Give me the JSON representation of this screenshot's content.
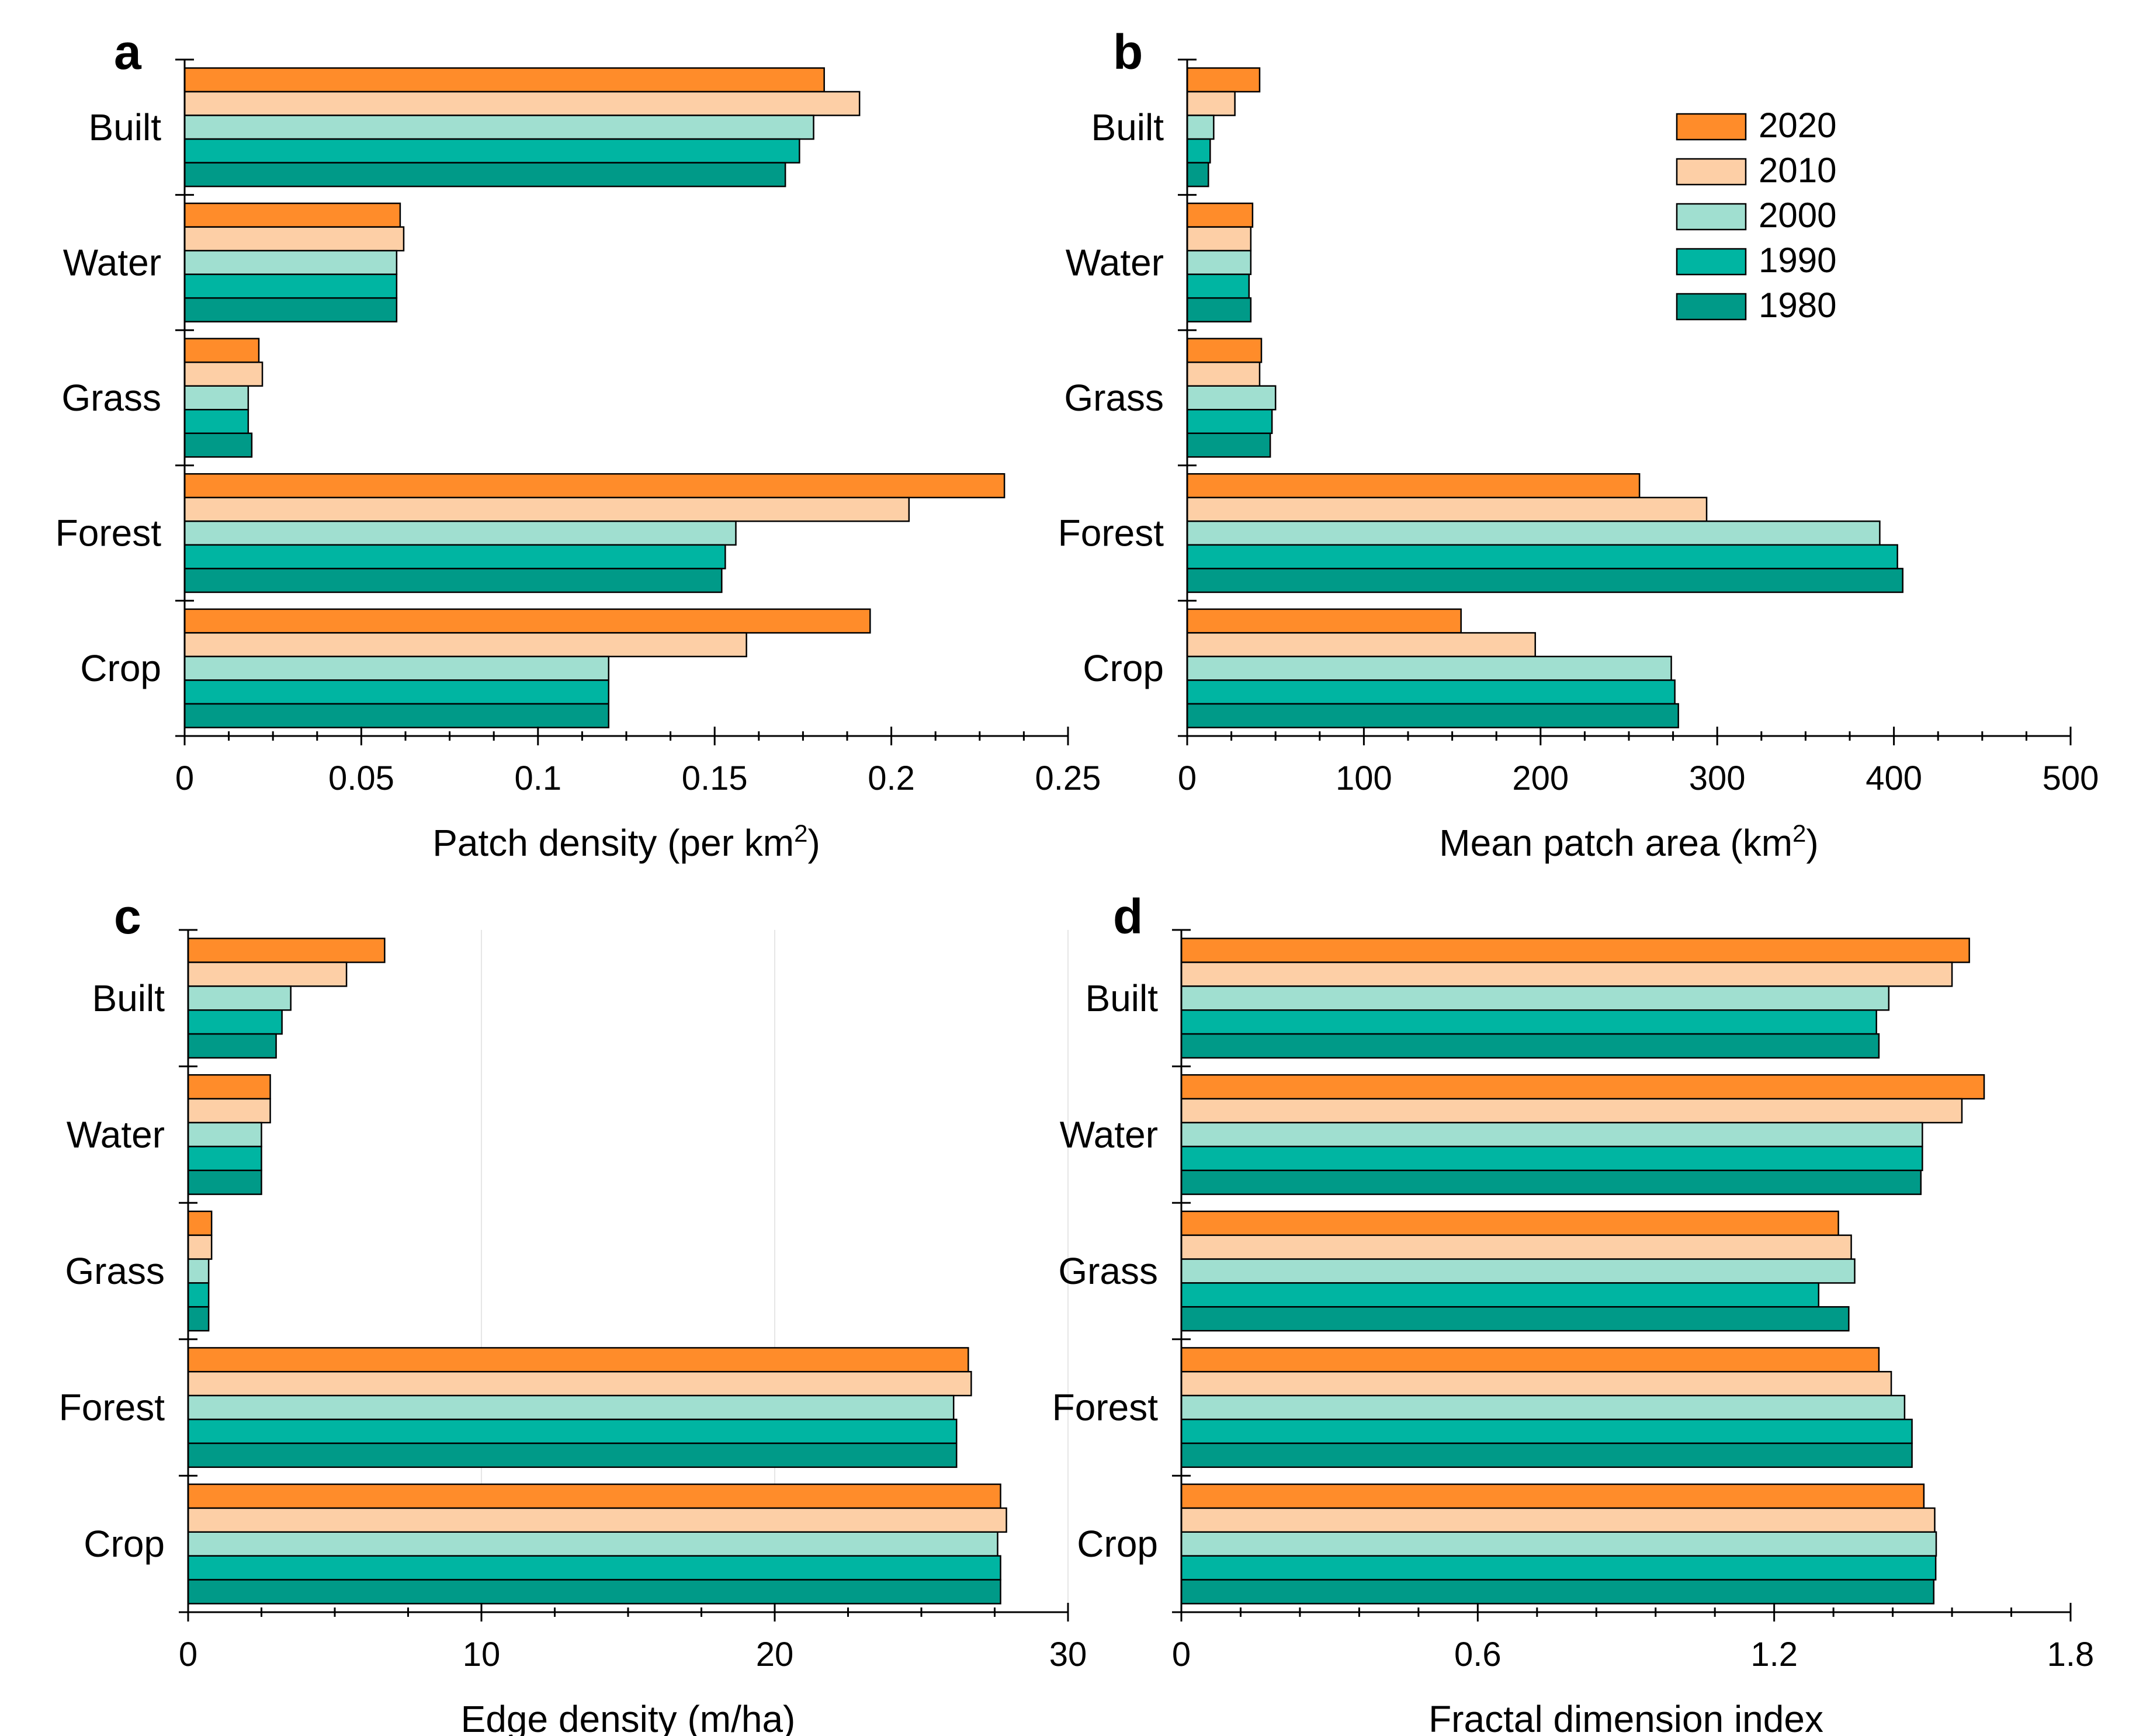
{
  "chart_data": [
    {
      "type": "bar",
      "orientation": "horizontal",
      "panel": "a",
      "categories": [
        "Built",
        "Water",
        "Grass",
        "Forest",
        "Crop"
      ],
      "series": [
        {
          "name": "2020",
          "values": [
            0.181,
            0.061,
            0.021,
            0.232,
            0.194
          ]
        },
        {
          "name": "2010",
          "values": [
            0.191,
            0.062,
            0.022,
            0.205,
            0.159
          ]
        },
        {
          "name": "2000",
          "values": [
            0.178,
            0.06,
            0.018,
            0.156,
            0.12
          ]
        },
        {
          "name": "1990",
          "values": [
            0.174,
            0.06,
            0.018,
            0.153,
            0.12
          ]
        },
        {
          "name": "1980",
          "values": [
            0.17,
            0.06,
            0.019,
            0.152,
            0.12
          ]
        }
      ],
      "xlabel": "Patch density (per km",
      "xlabel_sup": "2",
      "xlabel_end": ")",
      "xlim": [
        0,
        0.25
      ],
      "xticks": [
        0,
        0.05,
        0.1,
        0.15,
        0.2,
        0.25
      ],
      "xtick_labels": [
        "0",
        "0.05",
        "0.1",
        "0.15",
        "0.2",
        "0.25"
      ],
      "minor_per_major": 4,
      "grid": false
    },
    {
      "type": "bar",
      "orientation": "horizontal",
      "panel": "b",
      "categories": [
        "Built",
        "Water",
        "Grass",
        "Forest",
        "Crop"
      ],
      "series": [
        {
          "name": "2020",
          "values": [
            41,
            37,
            42,
            256,
            155
          ]
        },
        {
          "name": "2010",
          "values": [
            27,
            36,
            41,
            294,
            197
          ]
        },
        {
          "name": "2000",
          "values": [
            15,
            36,
            50,
            392,
            274
          ]
        },
        {
          "name": "1990",
          "values": [
            13,
            35,
            48,
            402,
            276
          ]
        },
        {
          "name": "1980",
          "values": [
            12,
            36,
            47,
            405,
            278
          ]
        }
      ],
      "xlabel": "Mean patch area (km",
      "xlabel_sup": "2",
      "xlabel_end": ")",
      "xlim": [
        0,
        500
      ],
      "xticks": [
        0,
        100,
        200,
        300,
        400,
        500
      ],
      "xtick_labels": [
        "0",
        "100",
        "200",
        "300",
        "400",
        "500"
      ],
      "minor_per_major": 4,
      "grid": false,
      "legend": {
        "position": "top-right",
        "entries": [
          "2020",
          "2010",
          "2000",
          "1990",
          "1980"
        ]
      }
    },
    {
      "type": "bar",
      "orientation": "horizontal",
      "panel": "c",
      "categories": [
        "Built",
        "Water",
        "Grass",
        "Forest",
        "Crop"
      ],
      "series": [
        {
          "name": "2020",
          "values": [
            6.7,
            2.8,
            0.8,
            26.6,
            27.7
          ]
        },
        {
          "name": "2010",
          "values": [
            5.4,
            2.8,
            0.8,
            26.7,
            27.9
          ]
        },
        {
          "name": "2000",
          "values": [
            3.5,
            2.5,
            0.7,
            26.1,
            27.6
          ]
        },
        {
          "name": "1990",
          "values": [
            3.2,
            2.5,
            0.7,
            26.2,
            27.7
          ]
        },
        {
          "name": "1980",
          "values": [
            3.0,
            2.5,
            0.7,
            26.2,
            27.7
          ]
        }
      ],
      "xlabel": "Edge density (m/ha)",
      "xlabel_sup": "",
      "xlabel_end": "",
      "xlim": [
        0,
        30
      ],
      "xticks": [
        0,
        10,
        20,
        30
      ],
      "xtick_labels": [
        "0",
        "10",
        "20",
        "30"
      ],
      "minor_per_major": 4,
      "grid": true
    },
    {
      "type": "bar",
      "orientation": "horizontal",
      "panel": "d",
      "categories": [
        "Built",
        "Water",
        "Grass",
        "Forest",
        "Crop"
      ],
      "series": [
        {
          "name": "2020",
          "values": [
            1.595,
            1.625,
            1.33,
            1.412,
            1.503
          ]
        },
        {
          "name": "2010",
          "values": [
            1.56,
            1.58,
            1.356,
            1.437,
            1.525
          ]
        },
        {
          "name": "2000",
          "values": [
            1.432,
            1.5,
            1.363,
            1.464,
            1.528
          ]
        },
        {
          "name": "1990",
          "values": [
            1.407,
            1.5,
            1.29,
            1.479,
            1.527
          ]
        },
        {
          "name": "1980",
          "values": [
            1.412,
            1.497,
            1.351,
            1.479,
            1.523
          ]
        }
      ],
      "xlabel": "Fractal dimension index",
      "xlabel_sup": "",
      "xlabel_end": "",
      "xlim": [
        0,
        1.8
      ],
      "xticks": [
        0,
        0.6,
        1.2,
        1.8
      ],
      "xtick_labels": [
        "0",
        "0.6",
        "1.2",
        "1.8"
      ],
      "minor_per_major": 5,
      "grid": false
    }
  ],
  "series_colors": {
    "2020": "#FF8C2A",
    "2010": "#FDCFA6",
    "2000": "#A0DFD0",
    "1990": "#00B5A2",
    "1980": "#009A88"
  }
}
